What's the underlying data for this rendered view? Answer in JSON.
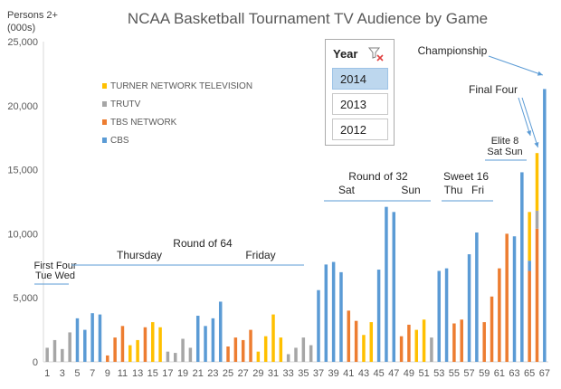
{
  "chart_data": {
    "type": "bar",
    "title": "NCAA Basketball Tournament TV Audience by Game",
    "ylabel": "Persons 2+ (000s)",
    "ylabel_lines": [
      "Persons 2+",
      "(000s)"
    ],
    "xlabel": "",
    "ylim": [
      0,
      25000
    ],
    "yticks": [
      "0",
      "5,000",
      "10,000",
      "15,000",
      "20,000",
      "25,000"
    ],
    "ytick_values": [
      0,
      5000,
      10000,
      15000,
      20000,
      25000
    ],
    "x": [
      1,
      2,
      3,
      4,
      5,
      6,
      7,
      8,
      9,
      10,
      11,
      12,
      13,
      14,
      15,
      16,
      17,
      18,
      19,
      20,
      21,
      22,
      23,
      24,
      25,
      26,
      27,
      28,
      29,
      30,
      31,
      32,
      33,
      34,
      35,
      36,
      37,
      38,
      39,
      40,
      41,
      42,
      43,
      44,
      45,
      46,
      47,
      48,
      49,
      50,
      51,
      52,
      53,
      54,
      55,
      56,
      57,
      58,
      59,
      60,
      61,
      62,
      63,
      64,
      65,
      66,
      67
    ],
    "xticks": [
      "1",
      "3",
      "5",
      "7",
      "9",
      "11",
      "13",
      "15",
      "17",
      "19",
      "21",
      "23",
      "25",
      "27",
      "29",
      "31",
      "33",
      "35",
      "37",
      "39",
      "41",
      "43",
      "45",
      "47",
      "49",
      "51",
      "53",
      "55",
      "57",
      "59",
      "61",
      "63",
      "65",
      "67"
    ],
    "grid": false,
    "legend_position": "upper-left",
    "series": [
      {
        "name": "TURNER NETWORK TELEVISION",
        "color": "#FFC000"
      },
      {
        "name": "TRUTV",
        "color": "#A6A6A6"
      },
      {
        "name": "TBS NETWORK",
        "color": "#ED7D31"
      },
      {
        "name": "CBS",
        "color": "#5B9BD5"
      }
    ],
    "bars": [
      {
        "x": 1,
        "network": "TRUTV",
        "value": 1100
      },
      {
        "x": 2,
        "network": "TRUTV",
        "value": 1700
      },
      {
        "x": 3,
        "network": "TRUTV",
        "value": 1000
      },
      {
        "x": 4,
        "network": "TRUTV",
        "value": 2300
      },
      {
        "x": 5,
        "network": "CBS",
        "value": 3400
      },
      {
        "x": 6,
        "network": "CBS",
        "value": 2500
      },
      {
        "x": 7,
        "network": "CBS",
        "value": 3800
      },
      {
        "x": 8,
        "network": "CBS",
        "value": 3700
      },
      {
        "x": 9,
        "network": "TBS NETWORK",
        "value": 500
      },
      {
        "x": 10,
        "network": "TBS NETWORK",
        "value": 1900
      },
      {
        "x": 11,
        "network": "TBS NETWORK",
        "value": 2800
      },
      {
        "x": 12,
        "network": "TURNER NETWORK TELEVISION",
        "value": 1300
      },
      {
        "x": 13,
        "network": "TURNER NETWORK TELEVISION",
        "value": 1700
      },
      {
        "x": 14,
        "network": "TBS NETWORK",
        "value": 2700
      },
      {
        "x": 15,
        "network": "TURNER NETWORK TELEVISION",
        "value": 3100
      },
      {
        "x": 16,
        "network": "TURNER NETWORK TELEVISION",
        "value": 2700
      },
      {
        "x": 17,
        "network": "TRUTV",
        "value": 800
      },
      {
        "x": 18,
        "network": "TRUTV",
        "value": 700
      },
      {
        "x": 19,
        "network": "TRUTV",
        "value": 1800
      },
      {
        "x": 20,
        "network": "TRUTV",
        "value": 1100
      },
      {
        "x": 21,
        "network": "CBS",
        "value": 3600
      },
      {
        "x": 22,
        "network": "CBS",
        "value": 2800
      },
      {
        "x": 23,
        "network": "CBS",
        "value": 3400
      },
      {
        "x": 24,
        "network": "CBS",
        "value": 4700
      },
      {
        "x": 25,
        "network": "TBS NETWORK",
        "value": 1200
      },
      {
        "x": 26,
        "network": "TBS NETWORK",
        "value": 1900
      },
      {
        "x": 27,
        "network": "TBS NETWORK",
        "value": 1700
      },
      {
        "x": 28,
        "network": "TBS NETWORK",
        "value": 2500
      },
      {
        "x": 29,
        "network": "TURNER NETWORK TELEVISION",
        "value": 800
      },
      {
        "x": 30,
        "network": "TURNER NETWORK TELEVISION",
        "value": 2000
      },
      {
        "x": 31,
        "network": "TURNER NETWORK TELEVISION",
        "value": 3700
      },
      {
        "x": 32,
        "network": "TURNER NETWORK TELEVISION",
        "value": 1900
      },
      {
        "x": 33,
        "network": "TRUTV",
        "value": 600
      },
      {
        "x": 34,
        "network": "TRUTV",
        "value": 1100
      },
      {
        "x": 35,
        "network": "TRUTV",
        "value": 1900
      },
      {
        "x": 36,
        "network": "TRUTV",
        "value": 1300
      },
      {
        "x": 37,
        "network": "CBS",
        "value": 5600
      },
      {
        "x": 38,
        "network": "CBS",
        "value": 7600
      },
      {
        "x": 39,
        "network": "CBS",
        "value": 7800
      },
      {
        "x": 40,
        "network": "CBS",
        "value": 7000
      },
      {
        "x": 41,
        "network": "TBS NETWORK",
        "value": 4000
      },
      {
        "x": 42,
        "network": "TBS NETWORK",
        "value": 3200
      },
      {
        "x": 43,
        "network": "TURNER NETWORK TELEVISION",
        "value": 2100
      },
      {
        "x": 44,
        "network": "TURNER NETWORK TELEVISION",
        "value": 3100
      },
      {
        "x": 45,
        "network": "CBS",
        "value": 7200
      },
      {
        "x": 46,
        "network": "CBS",
        "value": 12100
      },
      {
        "x": 47,
        "network": "CBS",
        "value": 11700
      },
      {
        "x": 48,
        "network": "TBS NETWORK",
        "value": 2000
      },
      {
        "x": 49,
        "network": "TBS NETWORK",
        "value": 2900
      },
      {
        "x": 50,
        "network": "TURNER NETWORK TELEVISION",
        "value": 2500
      },
      {
        "x": 51,
        "network": "TURNER NETWORK TELEVISION",
        "value": 3300
      },
      {
        "x": 52,
        "network": "TRUTV",
        "value": 1900
      },
      {
        "x": 53,
        "network": "CBS",
        "value": 7100
      },
      {
        "x": 54,
        "network": "CBS",
        "value": 7300
      },
      {
        "x": 55,
        "network": "TBS NETWORK",
        "value": 3000
      },
      {
        "x": 56,
        "network": "TBS NETWORK",
        "value": 3300
      },
      {
        "x": 57,
        "network": "CBS",
        "value": 8400
      },
      {
        "x": 58,
        "network": "CBS",
        "value": 10100
      },
      {
        "x": 59,
        "network": "TBS NETWORK",
        "value": 3100
      },
      {
        "x": 60,
        "network": "TBS NETWORK",
        "value": 5100
      },
      {
        "x": 61,
        "network": "TBS NETWORK",
        "value": 7300
      },
      {
        "x": 62,
        "network": "TBS NETWORK",
        "value": 10000
      },
      {
        "x": 63,
        "network": "CBS",
        "value": 9800
      },
      {
        "x": 64,
        "network": "CBS",
        "value": 14800
      },
      {
        "x": 65,
        "stack": [
          {
            "network": "TBS NETWORK",
            "value": 7100
          },
          {
            "network": "CBS",
            "value": 800
          },
          {
            "network": "TURNER NETWORK TELEVISION",
            "value": 3800
          }
        ]
      },
      {
        "x": 66,
        "stack": [
          {
            "network": "TBS NETWORK",
            "value": 10400
          },
          {
            "network": "TRUTV",
            "value": 1400
          },
          {
            "network": "TURNER NETWORK TELEVISION",
            "value": 4500
          }
        ]
      },
      {
        "x": 67,
        "network": "CBS",
        "value": 21300
      }
    ],
    "annotations": [
      {
        "id": "first-four",
        "lines": [
          "First Four",
          "Tue Wed"
        ],
        "x_range": [
          1,
          4
        ],
        "arrow": false
      },
      {
        "id": "round-of-64",
        "lines": [
          "Round of 64"
        ],
        "x_range": [
          5,
          36
        ],
        "arrow": false
      },
      {
        "id": "thursday",
        "lines": [
          "Thursday"
        ],
        "x_range": [
          5,
          20
        ],
        "arrow": false
      },
      {
        "id": "friday",
        "lines": [
          "Friday"
        ],
        "x_range": [
          21,
          36
        ],
        "arrow": false
      },
      {
        "id": "round-of-32",
        "lines": [
          "Round of 32"
        ],
        "x_range": [
          37,
          51
        ],
        "arrow": false
      },
      {
        "id": "sat-32",
        "lines": [
          "Sat"
        ],
        "x_range": [
          37,
          44
        ],
        "arrow": false
      },
      {
        "id": "sun-32",
        "lines": [
          "Sun"
        ],
        "x_range": [
          45,
          51
        ],
        "arrow": false
      },
      {
        "id": "sweet-16",
        "lines": [
          "Sweet 16"
        ],
        "x_range": [
          53,
          60
        ],
        "arrow": false
      },
      {
        "id": "thu-16",
        "lines": [
          "Thu"
        ],
        "x_range": [
          53,
          56
        ],
        "arrow": false
      },
      {
        "id": "fri-16",
        "lines": [
          "Fri"
        ],
        "x_range": [
          57,
          60
        ],
        "arrow": false
      },
      {
        "id": "elite-8",
        "lines": [
          "Elite 8",
          "Sat Sun"
        ],
        "x_range": [
          61,
          64
        ],
        "arrow": false
      },
      {
        "id": "final-four",
        "lines": [
          "Final Four"
        ],
        "targets": [
          65,
          66
        ],
        "arrow": true
      },
      {
        "id": "championship",
        "lines": [
          "Championship"
        ],
        "targets": [
          67
        ],
        "arrow": true
      }
    ]
  },
  "slicer": {
    "header": "Year",
    "filter_icon": "clear-filter-icon",
    "options": [
      {
        "label": "2014",
        "selected": true
      },
      {
        "label": "2013",
        "selected": false
      },
      {
        "label": "2012",
        "selected": false
      }
    ]
  },
  "colors": {
    "axis": "#d9d9d9",
    "text": "#595959",
    "annotation_line": "#5B9BD5",
    "slicer_selected": "#BDD7EE",
    "slicer_border": "#ABABAB"
  }
}
